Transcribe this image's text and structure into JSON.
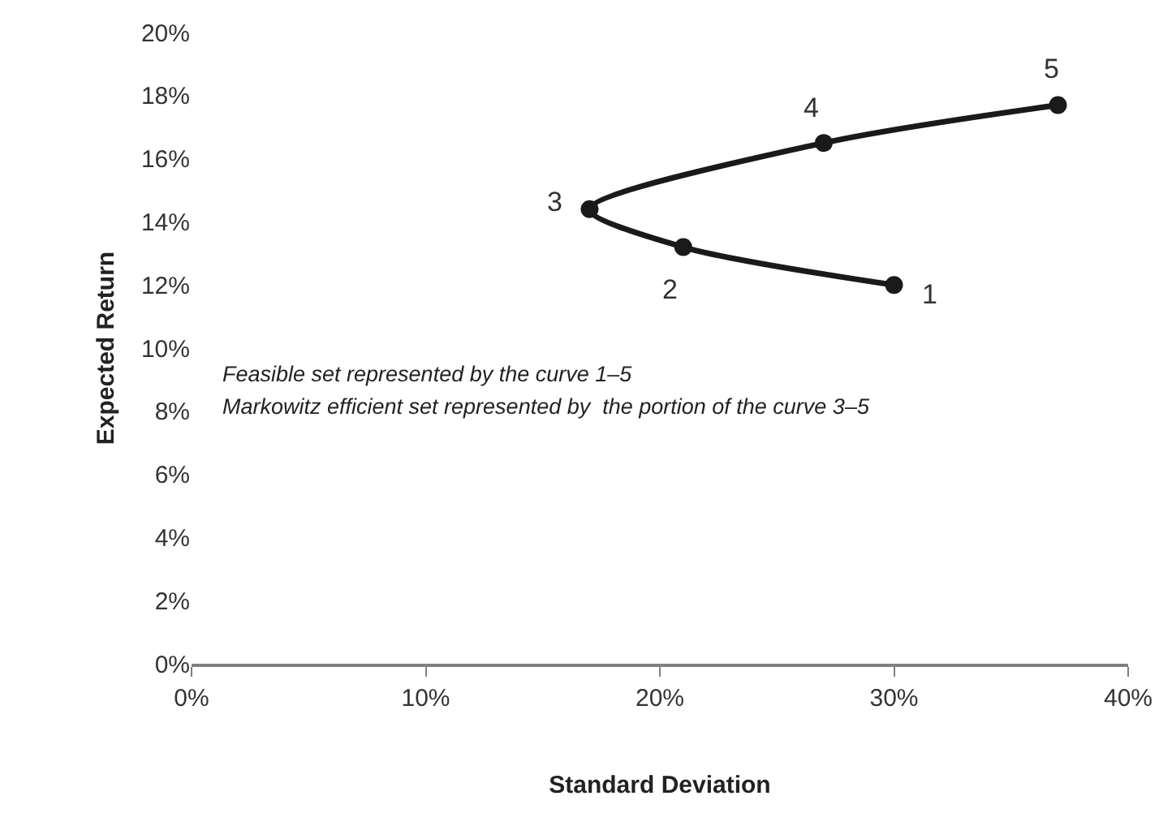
{
  "chart_data": {
    "type": "line",
    "xlabel": "Standard Deviation",
    "ylabel": "Expected Return",
    "x": [
      30,
      21,
      17,
      27,
      37
    ],
    "series": [
      {
        "color": "#1a1a1a",
        "values": [
          12,
          13.2,
          14.4,
          16.5,
          17.7
        ]
      }
    ],
    "marker": "circle",
    "line_style": "solid",
    "xlim": [
      0,
      40
    ],
    "xticks": [
      {
        "value": 0,
        "label": "0%"
      },
      {
        "value": 10,
        "label": "10%"
      },
      {
        "value": 20,
        "label": "20%"
      },
      {
        "value": 30,
        "label": "30%"
      },
      {
        "value": 40,
        "label": "40%"
      }
    ],
    "ylim": [
      0,
      20
    ],
    "yticks": [
      {
        "value": 0,
        "label": "0%"
      },
      {
        "value": 2,
        "label": "2%"
      },
      {
        "value": 4,
        "label": "4%"
      },
      {
        "value": 6,
        "label": "6%"
      },
      {
        "value": 8,
        "label": "8%"
      },
      {
        "value": 10,
        "label": "10%"
      },
      {
        "value": 12,
        "label": "12%"
      },
      {
        "value": 14,
        "label": "14%"
      },
      {
        "value": 16,
        "label": "16%"
      },
      {
        "value": 18,
        "label": "18%"
      },
      {
        "value": 20,
        "label": "20%"
      }
    ],
    "annotations": [
      {
        "text": "1",
        "x": 30,
        "y": 12
      },
      {
        "text": "2",
        "x": 21,
        "y": 13.2
      },
      {
        "text": "3",
        "x": 17,
        "y": 14.4
      },
      {
        "text": "4",
        "x": 27,
        "y": 16.5
      },
      {
        "text": "5",
        "x": 37,
        "y": 17.7
      },
      "Feasible set represented by the curve 1–5",
      "Markowitz efficient set represented by  the portion of the curve 3–5"
    ]
  }
}
